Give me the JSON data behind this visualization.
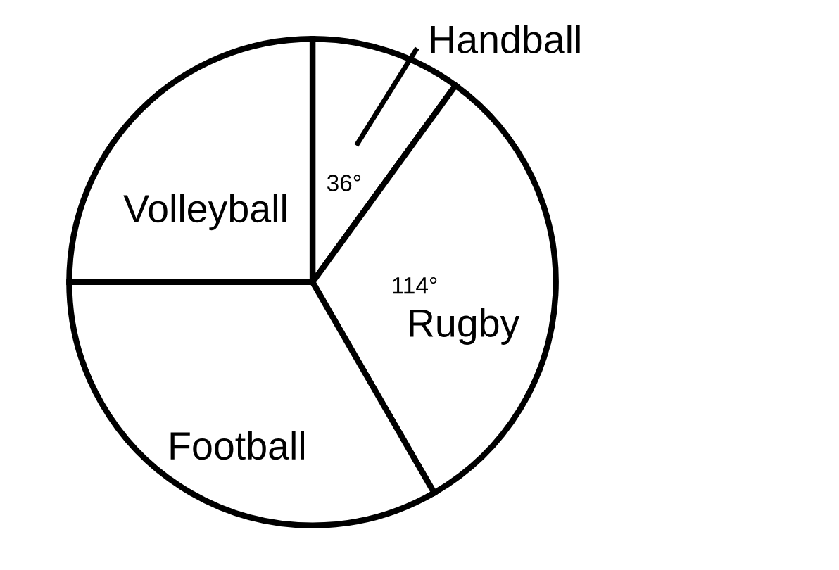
{
  "chart_data": {
    "type": "pie",
    "categories": [
      "Handball",
      "Rugby",
      "Football",
      "Volleyball"
    ],
    "values": [
      36,
      114,
      120,
      90
    ],
    "colors": [
      "#ffffff",
      "#ffffff",
      "#ffffff",
      "#ffffff"
    ],
    "value_labels": [
      "36°",
      "114°",
      null,
      null
    ]
  }
}
